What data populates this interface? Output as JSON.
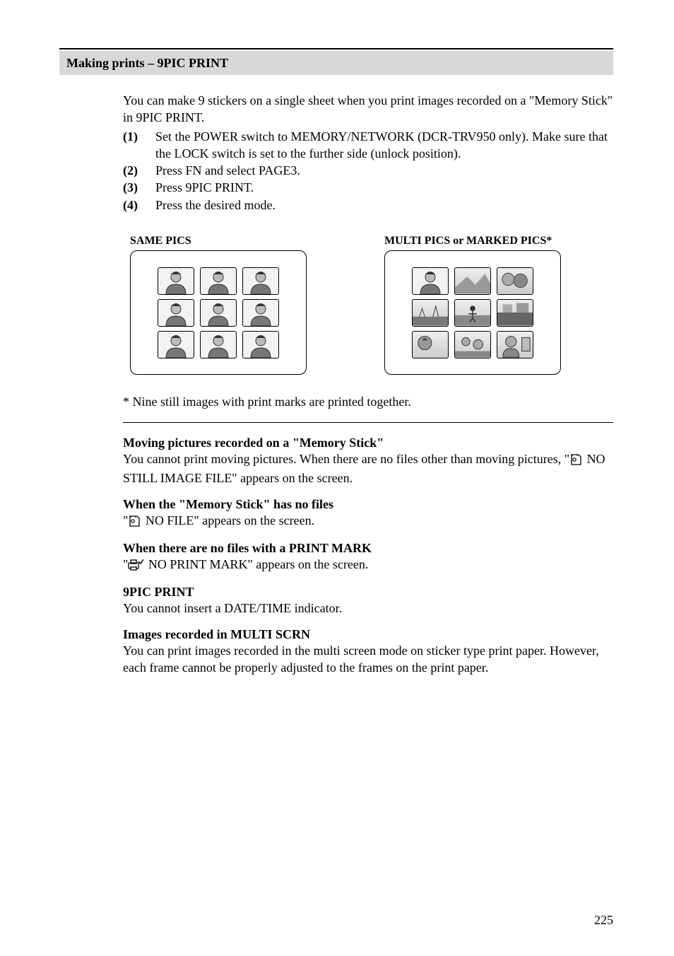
{
  "header": {
    "section_title": "Making prints – 9PIC PRINT"
  },
  "intro": "You can make 9 stickers on a single sheet when you print images recorded on a \"Memory Stick\" in 9PIC PRINT.",
  "steps": [
    {
      "num": "(1)",
      "text": "Set the POWER switch to MEMORY/NETWORK (DCR-TRV950 only). Make sure that the LOCK switch is set to the further side (unlock position)."
    },
    {
      "num": "(2)",
      "text": "Press FN and select PAGE3."
    },
    {
      "num": "(3)",
      "text": "Press 9PIC PRINT."
    },
    {
      "num": "(4)",
      "text": "Press the desired mode."
    }
  ],
  "figures": {
    "left_label": "SAME PICS",
    "right_label": "MULTI PICS or MARKED PICS*"
  },
  "caption": "* Nine still images with print marks are printed together.",
  "notes": [
    {
      "head": "Moving pictures recorded on a \"Memory Stick\"",
      "body_pre": "You cannot print moving pictures. When there are no files other than moving pictures, \"",
      "body_post": " NO STILL IMAGE FILE\" appears on the screen.",
      "icon": "memstick"
    },
    {
      "head": "When the \"Memory Stick\" has no files",
      "body_pre": "\"",
      "body_post": " NO FILE\" appears on the screen.",
      "icon": "memstick"
    },
    {
      "head": "When there are no files with a PRINT MARK",
      "body_pre": "\"",
      "body_post": "  NO PRINT MARK\" appears on the screen.",
      "icon": "printmark"
    },
    {
      "head": "9PIC PRINT",
      "body_pre": "You cannot insert a DATE/TIME indicator.",
      "body_post": "",
      "icon": ""
    },
    {
      "head": "Images recorded in MULTI SCRN",
      "body_pre": "You can print images recorded in the multi screen mode on sticker type print paper. However, each frame cannot be properly adjusted to the frames on the print paper.",
      "body_post": "",
      "icon": ""
    }
  ],
  "page_number": "225"
}
